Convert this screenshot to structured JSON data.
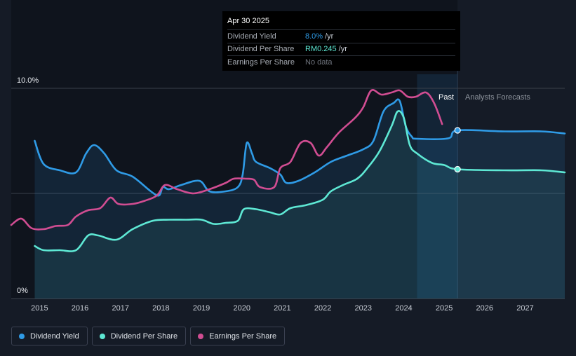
{
  "tooltip": {
    "date": "Apr 30 2025",
    "rows": [
      {
        "label": "Dividend Yield",
        "value": "8.0%",
        "unit": "/yr",
        "color": "#2f9be6"
      },
      {
        "label": "Dividend Per Share",
        "value": "RM0.245",
        "unit": "/yr",
        "color": "#5ee8d4"
      },
      {
        "label": "Earnings Per Share",
        "value": "No data",
        "unit": "",
        "color": "#6e737c"
      }
    ]
  },
  "legend": [
    {
      "label": "Dividend Yield",
      "color": "#2f9be6"
    },
    {
      "label": "Dividend Per Share",
      "color": "#5ee8d4"
    },
    {
      "label": "Earnings Per Share",
      "color": "#d14d92"
    }
  ],
  "chart_data": {
    "type": "line",
    "y_top_label": "10.0%",
    "y_bottom_label": "0%",
    "ylim": [
      0,
      10
    ],
    "xlim": [
      2014.3,
      2027.98
    ],
    "x_ticks": [
      2015,
      2016,
      2017,
      2018,
      2019,
      2020,
      2021,
      2022,
      2023,
      2024,
      2025,
      2026,
      2027
    ],
    "past_label": "Past",
    "forecast_label": "Analysts Forecasts",
    "past_end": 2025.33,
    "forecast_band_start": 2024.33,
    "colors": {
      "yield": "#2f9be6",
      "dps": "#5ee8d4",
      "eps": "#d14d92"
    },
    "series": [
      {
        "name": "Dividend Yield",
        "points": [
          [
            2014.88,
            7.5
          ],
          [
            2015.1,
            6.4
          ],
          [
            2015.5,
            6.1
          ],
          [
            2015.9,
            6.0
          ],
          [
            2016.15,
            6.9
          ],
          [
            2016.35,
            7.3
          ],
          [
            2016.6,
            6.9
          ],
          [
            2016.9,
            6.1
          ],
          [
            2017.3,
            5.8
          ],
          [
            2017.75,
            5.1
          ],
          [
            2017.95,
            4.9
          ],
          [
            2018.05,
            5.3
          ],
          [
            2018.2,
            5.2
          ],
          [
            2018.5,
            5.4
          ],
          [
            2018.95,
            5.6
          ],
          [
            2019.2,
            5.1
          ],
          [
            2019.6,
            5.1
          ],
          [
            2019.9,
            5.3
          ],
          [
            2020.02,
            5.9
          ],
          [
            2020.12,
            7.4
          ],
          [
            2020.25,
            6.9
          ],
          [
            2020.35,
            6.5
          ],
          [
            2020.7,
            6.2
          ],
          [
            2020.95,
            5.9
          ],
          [
            2021.1,
            5.5
          ],
          [
            2021.4,
            5.6
          ],
          [
            2021.8,
            6.0
          ],
          [
            2022.2,
            6.5
          ],
          [
            2022.6,
            6.8
          ],
          [
            2023.0,
            7.1
          ],
          [
            2023.25,
            7.5
          ],
          [
            2023.5,
            8.9
          ],
          [
            2023.75,
            9.3
          ],
          [
            2023.9,
            9.4
          ],
          [
            2024.05,
            8.2
          ],
          [
            2024.2,
            7.7
          ],
          [
            2024.33,
            7.6
          ],
          [
            2025.1,
            7.62
          ],
          [
            2025.33,
            8.0
          ],
          [
            2026.5,
            7.95
          ],
          [
            2027.4,
            7.95
          ],
          [
            2027.98,
            7.85
          ]
        ]
      },
      {
        "name": "Dividend Per Share",
        "points": [
          [
            2014.88,
            2.5
          ],
          [
            2015.1,
            2.3
          ],
          [
            2015.5,
            2.3
          ],
          [
            2015.9,
            2.3
          ],
          [
            2016.2,
            3.0
          ],
          [
            2016.45,
            3.0
          ],
          [
            2016.9,
            2.8
          ],
          [
            2017.3,
            3.3
          ],
          [
            2017.8,
            3.7
          ],
          [
            2018.2,
            3.75
          ],
          [
            2018.6,
            3.75
          ],
          [
            2019.0,
            3.75
          ],
          [
            2019.3,
            3.55
          ],
          [
            2019.6,
            3.6
          ],
          [
            2019.9,
            3.7
          ],
          [
            2020.05,
            4.25
          ],
          [
            2020.35,
            4.25
          ],
          [
            2020.7,
            4.1
          ],
          [
            2020.95,
            4.0
          ],
          [
            2021.2,
            4.3
          ],
          [
            2021.6,
            4.45
          ],
          [
            2022.0,
            4.7
          ],
          [
            2022.2,
            5.1
          ],
          [
            2022.5,
            5.4
          ],
          [
            2022.85,
            5.7
          ],
          [
            2023.1,
            6.2
          ],
          [
            2023.4,
            7.0
          ],
          [
            2023.7,
            8.2
          ],
          [
            2023.85,
            8.9
          ],
          [
            2024.0,
            8.6
          ],
          [
            2024.15,
            7.3
          ],
          [
            2024.33,
            6.9
          ],
          [
            2024.7,
            6.45
          ],
          [
            2025.0,
            6.35
          ],
          [
            2025.33,
            6.15
          ],
          [
            2026.5,
            6.1
          ],
          [
            2027.4,
            6.1
          ],
          [
            2027.98,
            6.0
          ]
        ]
      },
      {
        "name": "Earnings Per Share",
        "points": [
          [
            2014.3,
            3.5
          ],
          [
            2014.55,
            3.8
          ],
          [
            2014.8,
            3.35
          ],
          [
            2015.1,
            3.3
          ],
          [
            2015.4,
            3.45
          ],
          [
            2015.7,
            3.5
          ],
          [
            2015.9,
            3.9
          ],
          [
            2016.2,
            4.2
          ],
          [
            2016.5,
            4.3
          ],
          [
            2016.75,
            4.8
          ],
          [
            2016.95,
            4.5
          ],
          [
            2017.3,
            4.5
          ],
          [
            2017.6,
            4.65
          ],
          [
            2017.9,
            4.9
          ],
          [
            2018.1,
            5.4
          ],
          [
            2018.4,
            5.2
          ],
          [
            2018.8,
            5.0
          ],
          [
            2019.2,
            5.2
          ],
          [
            2019.6,
            5.5
          ],
          [
            2019.8,
            5.7
          ],
          [
            2020.1,
            5.7
          ],
          [
            2020.3,
            5.65
          ],
          [
            2020.45,
            5.3
          ],
          [
            2020.8,
            5.3
          ],
          [
            2020.95,
            6.2
          ],
          [
            2021.2,
            6.5
          ],
          [
            2021.45,
            7.4
          ],
          [
            2021.7,
            7.4
          ],
          [
            2021.9,
            6.8
          ],
          [
            2022.1,
            7.2
          ],
          [
            2022.4,
            7.9
          ],
          [
            2022.8,
            8.6
          ],
          [
            2023.0,
            9.1
          ],
          [
            2023.2,
            9.9
          ],
          [
            2023.45,
            9.7
          ],
          [
            2023.7,
            9.8
          ],
          [
            2023.9,
            9.9
          ],
          [
            2024.1,
            9.6
          ],
          [
            2024.3,
            9.6
          ],
          [
            2024.55,
            9.8
          ],
          [
            2024.75,
            9.3
          ],
          [
            2024.95,
            8.3
          ]
        ]
      }
    ],
    "markers": [
      {
        "series": "Dividend Yield",
        "x": 2025.33,
        "y": 8.0
      },
      {
        "series": "Dividend Per Share",
        "x": 2025.33,
        "y": 6.15
      }
    ]
  }
}
